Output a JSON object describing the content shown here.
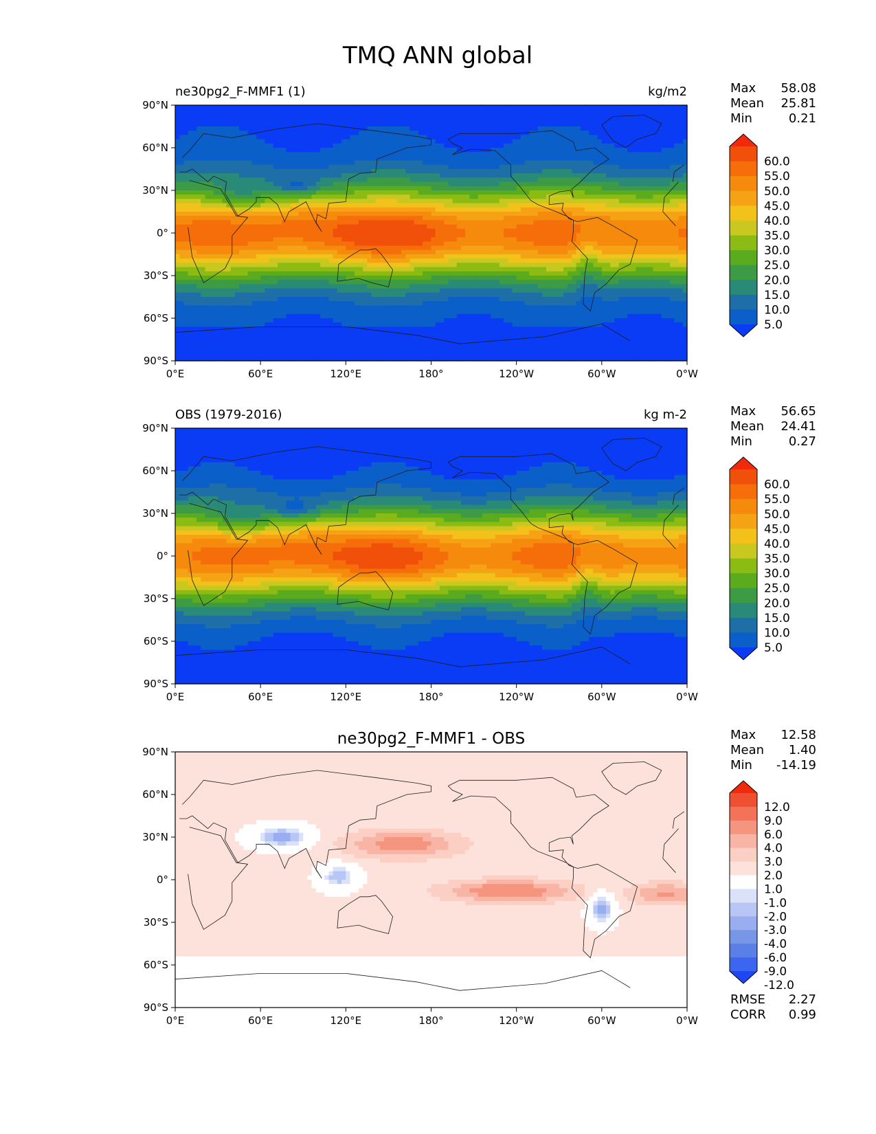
{
  "title": "TMQ ANN global",
  "colors": {
    "frame": "#000000",
    "coast": "#1a1a1a",
    "seq_palette": [
      "#0a3cf5",
      "#0a5fc8",
      "#1e6fa8",
      "#2a8a78",
      "#3d9a45",
      "#5aab1e",
      "#8cbc14",
      "#c8c820",
      "#f2c21a",
      "#f5a314",
      "#f58a0c",
      "#f56e0a",
      "#f0500a",
      "#f02a0a"
    ],
    "diff_palette": [
      "#1e46f5",
      "#3c66f0",
      "#5a7fe6",
      "#7896e6",
      "#98aef0",
      "#b8c6f5",
      "#dae2fa",
      "#ffffff",
      "#fde2dc",
      "#fbcfc4",
      "#f8b4a4",
      "#f5957f",
      "#f27358",
      "#f05032",
      "#f02a0a"
    ]
  },
  "panels": [
    {
      "left_title": "ne30pg2_F-MMF1 (1)",
      "center_title": "",
      "units": "kg/m2",
      "stats": [
        {
          "label": "Max",
          "value": "58.08"
        },
        {
          "label": "Mean",
          "value": "25.81"
        },
        {
          "label": "Min",
          "value": "0.21"
        }
      ],
      "colorbar_ticks": [
        "60.0",
        "55.0",
        "50.0",
        "45.0",
        "40.0",
        "35.0",
        "30.0",
        "25.0",
        "20.0",
        "15.0",
        "10.0",
        "5.0"
      ],
      "palette": "seq",
      "extra_stats": []
    },
    {
      "left_title": "OBS (1979-2016)",
      "center_title": "",
      "units": "kg m-2",
      "stats": [
        {
          "label": "Max",
          "value": "56.65"
        },
        {
          "label": "Mean",
          "value": "24.41"
        },
        {
          "label": "Min",
          "value": "0.27"
        }
      ],
      "colorbar_ticks": [
        "60.0",
        "55.0",
        "50.0",
        "45.0",
        "40.0",
        "35.0",
        "30.0",
        "25.0",
        "20.0",
        "15.0",
        "10.0",
        "5.0"
      ],
      "palette": "seq",
      "extra_stats": []
    },
    {
      "left_title": "",
      "center_title": "ne30pg2_F-MMF1 - OBS",
      "units": "",
      "stats": [
        {
          "label": "Max",
          "value": "12.58"
        },
        {
          "label": "Mean",
          "value": "1.40"
        },
        {
          "label": "Min",
          "value": "-14.19"
        }
      ],
      "colorbar_ticks": [
        "12.0",
        "9.0",
        "6.0",
        "4.0",
        "3.0",
        "2.0",
        "1.0",
        "-1.0",
        "-2.0",
        "-3.0",
        "-4.0",
        "-6.0",
        "-9.0",
        "-12.0"
      ],
      "palette": "diff",
      "extra_stats": [
        {
          "label": "RMSE",
          "value": "2.27"
        },
        {
          "label": "CORR",
          "value": "0.99"
        }
      ]
    }
  ],
  "chart_data": {
    "type": "heatmap",
    "title": "TMQ ANN global",
    "x_ticks": [
      "0°E",
      "60°E",
      "120°E",
      "180°",
      "120°W",
      "60°W",
      "0°W"
    ],
    "y_ticks": [
      "90°N",
      "60°N",
      "30°N",
      "0°",
      "30°S",
      "60°S",
      "90°S"
    ],
    "xlim": [
      0,
      360
    ],
    "ylim": [
      -90,
      90
    ],
    "maps": [
      {
        "name": "ne30pg2_F-MMF1 (1)",
        "units": "kg/m2",
        "max": 58.08,
        "mean": 25.81,
        "min": 0.21,
        "contour_levels": [
          5,
          10,
          15,
          20,
          25,
          30,
          35,
          40,
          45,
          50,
          55,
          60
        ]
      },
      {
        "name": "OBS (1979-2016)",
        "units": "kg m-2",
        "max": 56.65,
        "mean": 24.41,
        "min": 0.27,
        "contour_levels": [
          5,
          10,
          15,
          20,
          25,
          30,
          35,
          40,
          45,
          50,
          55,
          60
        ]
      },
      {
        "name": "ne30pg2_F-MMF1 - OBS",
        "max": 12.58,
        "mean": 1.4,
        "min": -14.19,
        "rmse": 2.27,
        "corr": 0.99,
        "contour_levels": [
          -12,
          -9,
          -6,
          -4,
          -3,
          -2,
          -1,
          1,
          2,
          3,
          4,
          6,
          9,
          12
        ]
      }
    ]
  }
}
